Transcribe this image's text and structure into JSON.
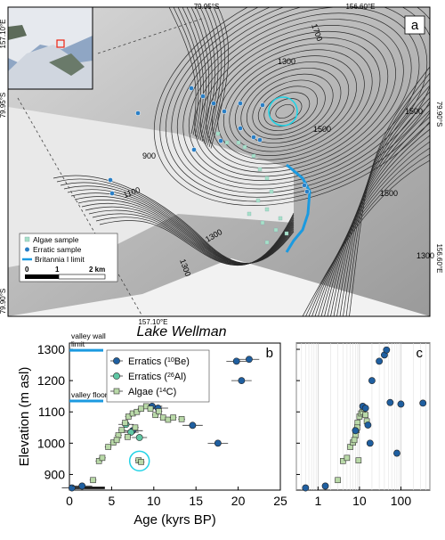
{
  "map": {
    "panel_label": "a",
    "coord_labels": {
      "top_a": "79.95°S",
      "top_b": "156.60°E",
      "left_top": "157.10°E",
      "left_mid": "79.95°S",
      "right_top": "79.90°S",
      "right_mid": "156.60°E",
      "bottom_left": "79.90°S",
      "bottom_mid": "157.10°E"
    },
    "contour_labels": [
      "1700",
      "1300",
      "1500",
      "1500",
      "900",
      "1100",
      "1300",
      "1300",
      "1500",
      "1300"
    ],
    "legend": {
      "algae": "Algae sample",
      "erratic": "Erratic sample",
      "limit": "Britannia I limit"
    },
    "scalebar": {
      "zero": "0",
      "one": "1",
      "two": "2 km"
    },
    "colors": {
      "algae": "#a8e0c8",
      "erratic": "#2a7fc6",
      "limit": "#1b9ae0",
      "highlight": "#22d3e6"
    }
  },
  "title": "Lake Wellman",
  "chart_data": [
    {
      "panel": "b",
      "type": "scatter",
      "xlabel": "Age (kyrs BP)",
      "ylabel": "Elevation (m asl)",
      "xlim": [
        0,
        25
      ],
      "ylim": [
        850,
        1320
      ],
      "xticks": [
        0,
        5,
        10,
        15,
        20,
        25
      ],
      "yticks": [
        900,
        1000,
        1100,
        1200,
        1300
      ],
      "annotations": [
        {
          "text": "valley wall",
          "text2": "limit",
          "y": 1297
        },
        {
          "text": "valley floor limit",
          "y": 1135
        }
      ],
      "series": [
        {
          "name": "Erratics (¹⁰Be)",
          "name_pre": "Erratics (",
          "name_sup": "10",
          "name_post": "Be)",
          "marker": "circle",
          "color": "#1f5fa0",
          "points": [
            [
              0.3,
              857
            ],
            [
              1.5,
              863
            ],
            [
              7.5,
              1040
            ],
            [
              9.8,
              1118
            ],
            [
              10.5,
              1112
            ],
            [
              14.6,
              1057
            ],
            [
              17.6,
              1000
            ],
            [
              19.8,
              1262
            ],
            [
              20.4,
              1200
            ],
            [
              21.3,
              1268
            ]
          ]
        },
        {
          "name": "Erratics (²⁶Al)",
          "name_pre": "Erratics (",
          "name_sup": "26",
          "name_post": "Al)",
          "marker": "circle",
          "color": "#5fc7a4",
          "points": [
            [
              6.7,
              1060
            ],
            [
              7.3,
              1035
            ],
            [
              8.3,
              1018
            ]
          ]
        },
        {
          "name": "Algae (¹⁴C)",
          "name_pre": "Algae (",
          "name_sup": "14",
          "name_post": "C)",
          "marker": "square",
          "color": "#b9d9a8",
          "points": [
            [
              2.8,
              882
            ],
            [
              3.5,
              943
            ],
            [
              3.9,
              953
            ],
            [
              4.6,
              988
            ],
            [
              5.2,
              1002
            ],
            [
              5.8,
              1025
            ],
            [
              6.2,
              1042
            ],
            [
              6.6,
              1065
            ],
            [
              7.0,
              1085
            ],
            [
              7.5,
              1095
            ],
            [
              8.0,
              1100
            ],
            [
              8.5,
              1110
            ],
            [
              9.1,
              1118
            ],
            [
              9.6,
              1110
            ],
            [
              10.2,
              1090
            ],
            [
              10.6,
              1102
            ],
            [
              11.1,
              1082
            ],
            [
              11.7,
              1075
            ],
            [
              12.3,
              1082
            ],
            [
              13.3,
              1077
            ],
            [
              5.6,
              1010
            ],
            [
              6.9,
              1020
            ],
            [
              7.8,
              1050
            ],
            [
              8.2,
              945
            ],
            [
              8.5,
              940
            ]
          ]
        }
      ]
    },
    {
      "panel": "c",
      "type": "scatter",
      "xscale": "log",
      "xlim": [
        0.3,
        500
      ],
      "ylim": [
        850,
        1320
      ],
      "xticks": [
        1,
        10,
        100
      ],
      "xtick_labels": [
        "1",
        "10",
        "100"
      ],
      "points_erratics": [
        [
          0.5,
          857
        ],
        [
          1.5,
          863
        ],
        [
          8,
          1040
        ],
        [
          12,
          1118
        ],
        [
          14,
          1112
        ],
        [
          16,
          1058
        ],
        [
          18,
          1000
        ],
        [
          20,
          1200
        ],
        [
          30,
          1262
        ],
        [
          40,
          1282
        ],
        [
          45,
          1298
        ],
        [
          55,
          1130
        ],
        [
          80,
          968
        ],
        [
          100,
          1125
        ],
        [
          340,
          1128
        ]
      ],
      "points_algae": [
        [
          3,
          882
        ],
        [
          4,
          943
        ],
        [
          5,
          953
        ],
        [
          6,
          988
        ],
        [
          7,
          1002
        ],
        [
          8,
          1025
        ],
        [
          8.5,
          1042
        ],
        [
          9,
          1065
        ],
        [
          10,
          1085
        ],
        [
          11,
          1095
        ],
        [
          12,
          1100
        ],
        [
          13,
          1110
        ],
        [
          14,
          1090
        ],
        [
          15,
          1070
        ],
        [
          7.5,
          1010
        ],
        [
          8.8,
          1050
        ],
        [
          9.5,
          945
        ]
      ]
    }
  ]
}
